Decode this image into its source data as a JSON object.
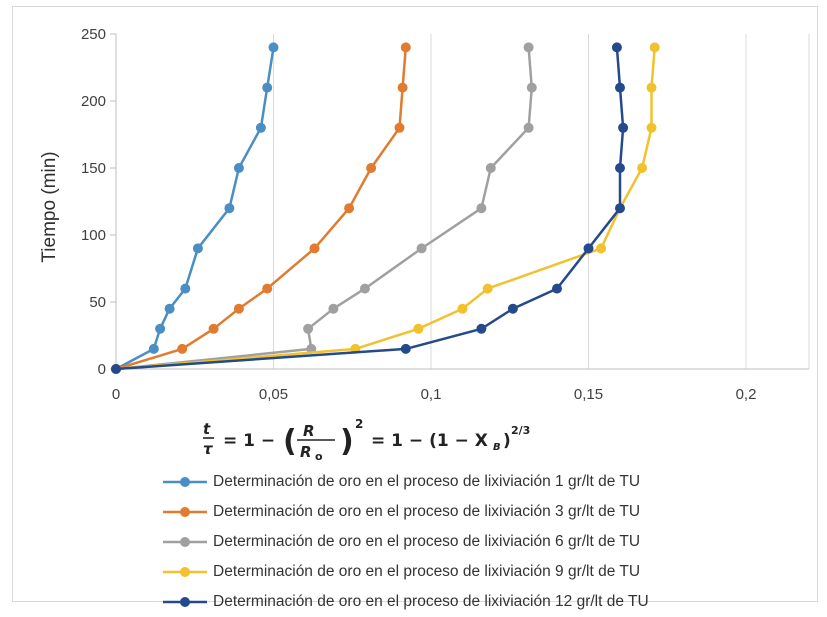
{
  "chart_data": {
    "type": "scatter",
    "xlabel": "t/τ = 1 − (R/R₀)² = 1 − (1 − X_B)^(2/3)",
    "ylabel": "Tiempo (min)",
    "xlim": [
      0,
      0.22
    ],
    "ylim": [
      0,
      250
    ],
    "x_ticks": [
      "0",
      "0,05",
      "0,1",
      "0,15",
      "0,2"
    ],
    "y_ticks": [
      "0",
      "50",
      "100",
      "150",
      "200",
      "250"
    ],
    "grid": "vertical",
    "legend_position": "bottom",
    "series": [
      {
        "name": "Determinación de oro en el proceso de lixiviación  1 gr/lt de TU",
        "color": "#4a8ec4",
        "points": [
          [
            0,
            0
          ],
          [
            0.012,
            15
          ],
          [
            0.014,
            30
          ],
          [
            0.017,
            45
          ],
          [
            0.022,
            60
          ],
          [
            0.026,
            90
          ],
          [
            0.036,
            120
          ],
          [
            0.039,
            150
          ],
          [
            0.046,
            180
          ],
          [
            0.048,
            210
          ],
          [
            0.05,
            240
          ]
        ]
      },
      {
        "name": "Determinación de oro en el proceso de lixiviación  3 gr/lt de TU",
        "color": "#e07b30",
        "points": [
          [
            0,
            0
          ],
          [
            0.021,
            15
          ],
          [
            0.031,
            30
          ],
          [
            0.039,
            45
          ],
          [
            0.048,
            60
          ],
          [
            0.063,
            90
          ],
          [
            0.074,
            120
          ],
          [
            0.081,
            150
          ],
          [
            0.09,
            180
          ],
          [
            0.091,
            210
          ],
          [
            0.092,
            240
          ]
        ]
      },
      {
        "name": "Determinación de oro en el proceso de lixiviación  6 gr/lt de TU",
        "color": "#a0a0a0",
        "points": [
          [
            0,
            0
          ],
          [
            0.062,
            15
          ],
          [
            0.061,
            30
          ],
          [
            0.069,
            45
          ],
          [
            0.079,
            60
          ],
          [
            0.097,
            90
          ],
          [
            0.116,
            120
          ],
          [
            0.119,
            150
          ],
          [
            0.131,
            180
          ],
          [
            0.132,
            210
          ],
          [
            0.131,
            240
          ]
        ]
      },
      {
        "name": "Determinación de oro en el proceso de lixiviación  9 gr/lt de TU",
        "color": "#f2c12e",
        "points": [
          [
            0,
            0
          ],
          [
            0.076,
            15
          ],
          [
            0.096,
            30
          ],
          [
            0.11,
            45
          ],
          [
            0.118,
            60
          ],
          [
            0.154,
            90
          ],
          [
            0.16,
            120
          ],
          [
            0.167,
            150
          ],
          [
            0.17,
            180
          ],
          [
            0.17,
            210
          ],
          [
            0.171,
            240
          ]
        ]
      },
      {
        "name": "Determinación de oro en el proceso de lixiviación  12 gr/lt de TU",
        "color": "#244a8c",
        "points": [
          [
            0,
            0
          ],
          [
            0.092,
            15
          ],
          [
            0.116,
            30
          ],
          [
            0.126,
            45
          ],
          [
            0.14,
            60
          ],
          [
            0.15,
            90
          ],
          [
            0.16,
            120
          ],
          [
            0.16,
            150
          ],
          [
            0.161,
            180
          ],
          [
            0.16,
            210
          ],
          [
            0.159,
            240
          ]
        ]
      }
    ]
  }
}
